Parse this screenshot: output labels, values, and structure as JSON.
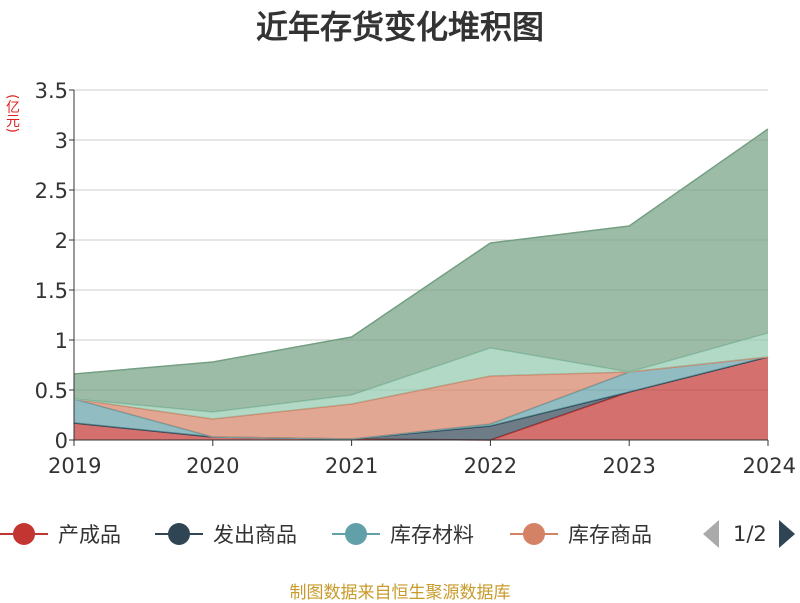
{
  "title": "近年存货变化堆积图",
  "unit_label": "(亿元)",
  "source": "制图数据来自恒生聚源数据库",
  "pager": {
    "text": "1/2"
  },
  "legend": [
    {
      "label": "产成品",
      "color": "#c23531"
    },
    {
      "label": "发出商品",
      "color": "#2f4554"
    },
    {
      "label": "库存材料",
      "color": "#61a0a8"
    },
    {
      "label": "库存商品",
      "color": "#d48265"
    }
  ],
  "chart_data": {
    "type": "area",
    "stacked": true,
    "x": [
      "2019",
      "2020",
      "2021",
      "2022",
      "2023",
      "2024"
    ],
    "ylim": [
      0,
      3.5
    ],
    "yticks": [
      "0",
      "0.5",
      "1",
      "1.5",
      "2",
      "2.5",
      "3",
      "3.5"
    ],
    "grid": true,
    "series": [
      {
        "name": "产成品",
        "color": "#c23531",
        "values": [
          0.17,
          0.03,
          0.01,
          0.0,
          0.48,
          0.83
        ]
      },
      {
        "name": "发出商品",
        "color": "#2f4554",
        "values": [
          0.0,
          0.0,
          0.0,
          0.14,
          0.0,
          0.0
        ]
      },
      {
        "name": "库存材料",
        "color": "#61a0a8",
        "values": [
          0.24,
          0.0,
          0.0,
          0.02,
          0.2,
          0.0
        ]
      },
      {
        "name": "库存商品",
        "color": "#d48265",
        "values": [
          0.0,
          0.18,
          0.35,
          0.48,
          0.0,
          0.0
        ]
      },
      {
        "name": "",
        "color": "#91c7ae",
        "values": [
          0.0,
          0.07,
          0.09,
          0.28,
          0.0,
          0.24
        ]
      },
      {
        "name": "",
        "color": "#749f83",
        "values": [
          0.25,
          0.5,
          0.58,
          1.05,
          1.46,
          2.04
        ]
      }
    ]
  }
}
